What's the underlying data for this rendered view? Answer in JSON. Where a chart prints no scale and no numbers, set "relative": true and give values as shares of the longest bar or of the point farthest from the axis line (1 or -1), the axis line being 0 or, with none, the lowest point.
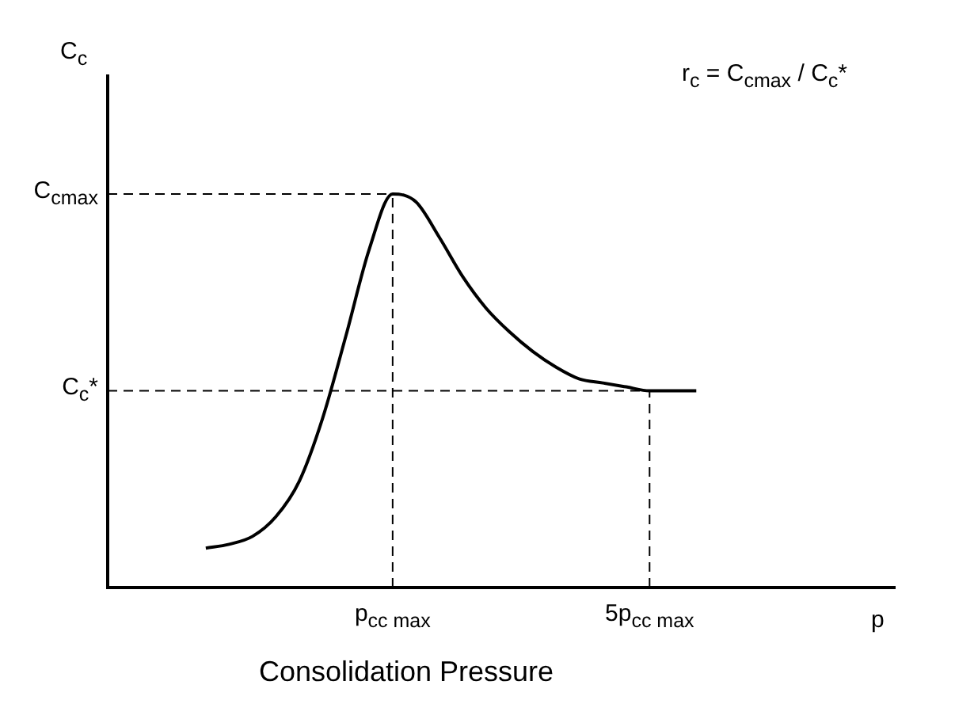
{
  "chart_data": {
    "type": "line",
    "xlabel": "Consolidation Pressure",
    "annotations": [
      "C$_{c}$",
      "p",
      "r$_{c}$ = C$_{cmax}$ / C$_{c}$*"
    ],
    "relative": true,
    "grid": "x",
    "legend": false,
    "marker": "none",
    "line_style": "solid",
    "categories": [
      null,
      null,
      null,
      null,
      null,
      null,
      null,
      null,
      "p$_{cc max}$",
      null,
      null,
      null,
      null,
      null,
      null,
      null,
      null,
      null,
      null,
      "5p$_{cc max}$",
      null,
      null
    ],
    "ref_lines": [
      {
        "axis": "y",
        "value": 1,
        "label": "C$_{cmax}$",
        "line_style": "dashed"
      },
      {
        "axis": "y",
        "value": 0.5,
        "label": "C$_{c}$*",
        "line_style": "dashed"
      }
    ],
    "series": [
      {
        "color": "#000000",
        "values": [
          0.1,
          0.11,
          0.13,
          0.18,
          0.27,
          0.43,
          0.64,
          0.86,
          1,
          0.98,
          0.89,
          0.79,
          0.71,
          0.65,
          0.6,
          0.56,
          0.53,
          0.52,
          0.51,
          0.5,
          0.5,
          0.5
        ]
      }
    ]
  }
}
